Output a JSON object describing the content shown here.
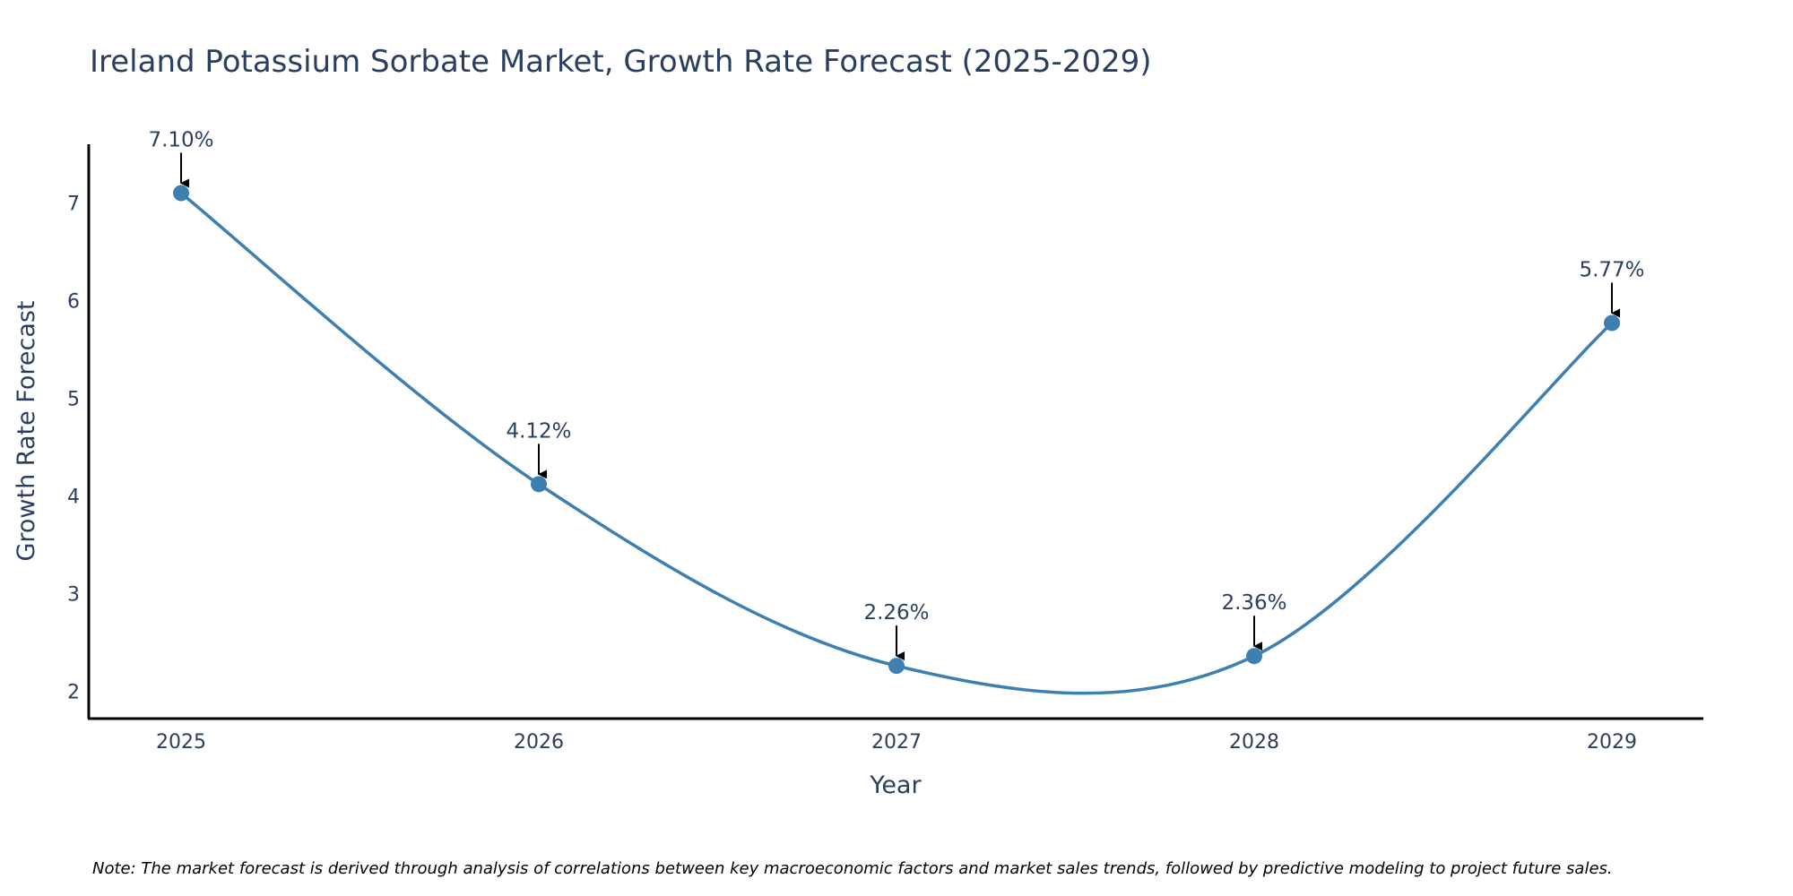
{
  "chart_data": {
    "type": "line",
    "title": "Ireland Potassium Sorbate Market, Growth Rate Forecast (2025-2029)",
    "xlabel": "Year",
    "ylabel": "Growth Rate Forecast",
    "categories": [
      "2025",
      "2026",
      "2027",
      "2028",
      "2029"
    ],
    "series": [
      {
        "name": "Growth Rate Forecast",
        "values": [
          7.1,
          4.12,
          2.26,
          2.36,
          5.77
        ],
        "labels": [
          "7.10%",
          "4.12%",
          "2.26%",
          "2.36%",
          "5.77%"
        ],
        "color": "#3d7fb0"
      }
    ],
    "yticks": [
      2,
      3,
      4,
      5,
      6,
      7
    ],
    "ylim": [
      1.72,
      7.6
    ],
    "grid": false,
    "line_shape": "spline",
    "note": "Note: The market forecast is derived through analysis of correlations between key macroeconomic factors and market sales trends, followed by predictive modeling to project future sales."
  }
}
